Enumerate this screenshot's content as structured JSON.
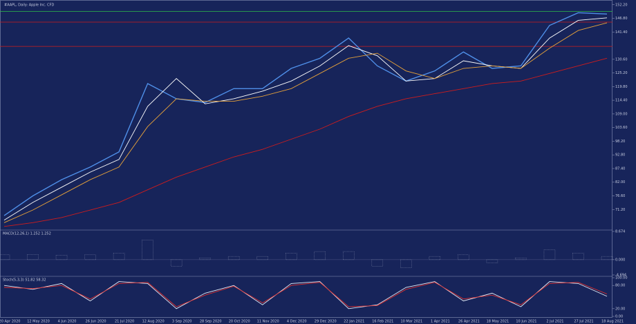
{
  "chart_data": [
    {
      "type": "line",
      "title": "#AAPL, Daily:  Apple Inc. CFD",
      "categories": [
        "20 Apr 2020",
        "12 May 2020",
        "4 Jun 2020",
        "26 Jun 2020",
        "21 Jul 2020",
        "12 Aug 2020",
        "3 Sep 2020",
        "28 Sep 2020",
        "20 Oct 2020",
        "11 Nov 2020",
        "4 Dec 2020",
        "29 Dec 2020",
        "22 Jan 2021",
        "16 Feb 2021",
        "10 Mar 2021",
        "1 Apr 2021",
        "26 Apr 2021",
        "18 May 2021",
        "10 Jun 2021",
        "2 Jul 2021",
        "27 Jul 2021",
        "18 Aug 2021"
      ],
      "series": [
        {
          "color": "#4f8fe8",
          "values": [
            68.8,
            76.6,
            83,
            88,
            94,
            121,
            115,
            113.5,
            119,
            119,
            127,
            131,
            139,
            128,
            122,
            126,
            133.5,
            127,
            128,
            144,
            149,
            148.5
          ]
        },
        {
          "color": "#ffffff",
          "values": [
            67,
            74,
            80,
            86,
            91,
            112,
            123,
            113,
            115,
            118,
            122,
            128,
            136,
            132,
            122,
            123,
            130,
            128,
            127,
            139,
            146,
            147
          ]
        },
        {
          "color": "#e8a33a",
          "values": [
            66,
            71,
            77,
            83,
            88,
            104,
            115,
            114,
            114,
            116,
            119,
            125,
            131,
            133,
            126,
            123,
            127,
            128,
            127,
            135,
            142,
            145
          ]
        },
        {
          "color": "#d01c1c",
          "values": [
            64.5,
            66,
            68,
            71,
            74,
            79,
            84,
            88,
            92,
            95,
            99,
            103,
            108,
            112,
            115,
            117,
            119,
            121,
            122,
            125,
            128,
            131
          ]
        }
      ],
      "levels": [
        {
          "value": 145.3,
          "color": "#d01c1c"
        },
        {
          "value": 135.7,
          "color": "#d01c1c"
        },
        {
          "value": 149.5,
          "color": "#2fbf4a"
        }
      ],
      "ylim": [
        63.9,
        153.5
      ],
      "yticks": [
        {
          "value": 152.2,
          "label": "152.20"
        },
        {
          "value": 146.8,
          "label": "146.80"
        },
        {
          "value": 141.4,
          "label": "141.40"
        },
        {
          "value": 130.6,
          "label": "130.60"
        },
        {
          "value": 125.2,
          "label": "125.20"
        },
        {
          "value": 119.8,
          "label": "119.80"
        },
        {
          "value": 114.4,
          "label": "114.40"
        },
        {
          "value": 109,
          "label": "109.00"
        },
        {
          "value": 103.6,
          "label": "103.60"
        },
        {
          "value": 98.2,
          "label": "98.20"
        },
        {
          "value": 92.8,
          "label": "92.80"
        },
        {
          "value": 87.4,
          "label": "87.40"
        },
        {
          "value": 82,
          "label": "82.00"
        },
        {
          "value": 76.6,
          "label": "76.60"
        },
        {
          "value": 71.2,
          "label": "71.20"
        }
      ]
    },
    {
      "type": "bar",
      "title": "MACD(12,26,1) 1.252 1.252",
      "color": "#c8cde0",
      "values": [
        1.5,
        1.6,
        1.4,
        1.5,
        2,
        6,
        -2,
        0.5,
        1,
        1,
        2,
        2.5,
        2.5,
        -2,
        -2.5,
        1,
        1.5,
        -1,
        0.5,
        3,
        2,
        1
      ],
      "ylim": [
        -4.694,
        8.674
      ],
      "yticks": [
        {
          "value": 8.674,
          "label": "8.674"
        },
        {
          "value": 0,
          "label": "0.000"
        },
        {
          "value": -4.694,
          "label": "-4.694"
        }
      ]
    },
    {
      "type": "line",
      "title": "Stoch(5,3,3) 51.82 58.32",
      "series": [
        {
          "color": "#e8ecf6",
          "values": [
            80,
            70,
            85,
            40,
            90,
            85,
            20,
            60,
            80,
            30,
            85,
            90,
            20,
            30,
            75,
            90,
            40,
            60,
            25,
            90,
            85,
            52
          ]
        },
        {
          "color": "#e03030",
          "values": [
            75,
            72,
            80,
            45,
            85,
            88,
            25,
            55,
            78,
            35,
            80,
            88,
            25,
            28,
            70,
            88,
            45,
            55,
            30,
            85,
            88,
            58
          ]
        }
      ],
      "ylim": [
        0,
        100
      ],
      "yticks": [
        {
          "value": 100,
          "label": "100.00"
        },
        {
          "value": 80,
          "label": "80.00"
        },
        {
          "value": 20,
          "label": "20.00"
        },
        {
          "value": 0,
          "label": "0.00"
        }
      ]
    }
  ]
}
